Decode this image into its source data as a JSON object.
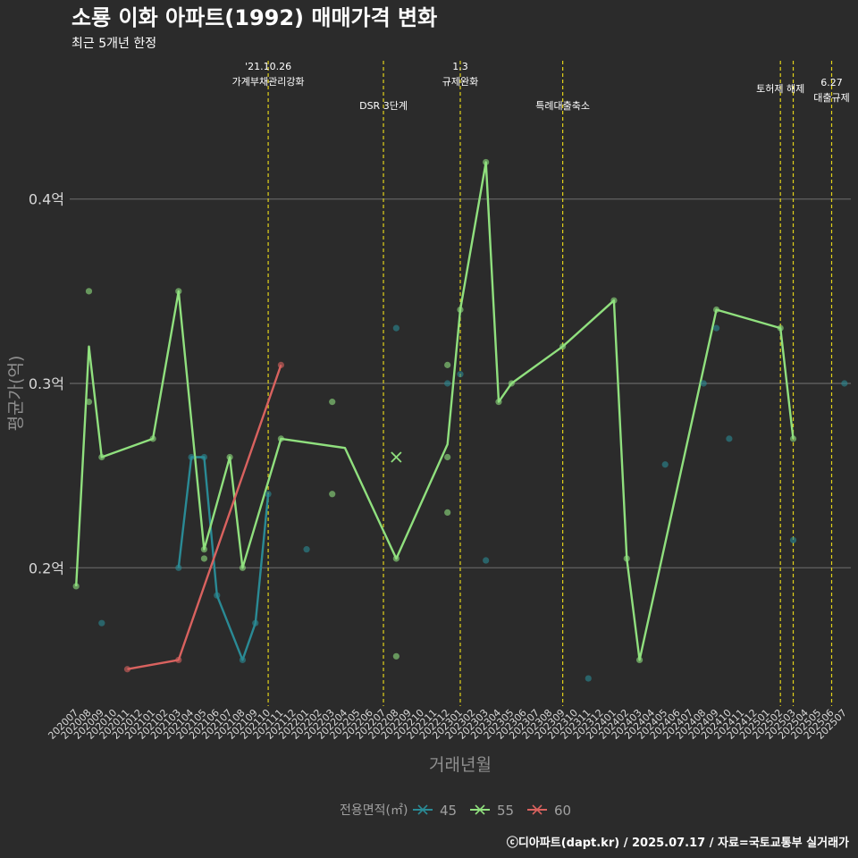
{
  "chart_data": {
    "type": "line",
    "title": "소룡 이화 아파트(1992) 매매가격 변화",
    "subtitle": "최근 5개년 한정",
    "xlabel": "거래년월",
    "ylabel": "평균가(억)",
    "caption": "ⓒ디아파트(dapt.kr) / 2025.07.17 / 자료=국토교통부 실거래가",
    "ylim": [
      0.125,
      0.475
    ],
    "y_ticks": [
      {
        "value": 0.2,
        "label": "0.2억"
      },
      {
        "value": 0.3,
        "label": "0.3억"
      },
      {
        "value": 0.4,
        "label": "0.4억"
      }
    ],
    "x_categories": [
      "202007",
      "202008",
      "202009",
      "202010",
      "202011",
      "202012",
      "202101",
      "202102",
      "202103",
      "202104",
      "202105",
      "202106",
      "202107",
      "202108",
      "202109",
      "202110",
      "202111",
      "202112",
      "202201",
      "202202",
      "202203",
      "202204",
      "202205",
      "202206",
      "202207",
      "202208",
      "202209",
      "202210",
      "202211",
      "202212",
      "202301",
      "202302",
      "202303",
      "202304",
      "202305",
      "202306",
      "202307",
      "202308",
      "202309",
      "202310",
      "202311",
      "202312",
      "202401",
      "202402",
      "202403",
      "202404",
      "202405",
      "202406",
      "202407",
      "202408",
      "202409",
      "202410",
      "202411",
      "202412",
      "202501",
      "202502",
      "202503",
      "202504",
      "202505",
      "202506",
      "202507"
    ],
    "legend": {
      "title": "전용면적(㎡)",
      "position": "bottom"
    },
    "series": [
      {
        "name": "45",
        "color": "#2a8a95",
        "line": [
          [
            "202103",
            0.2
          ],
          [
            "202104",
            0.26
          ],
          [
            "202105",
            0.26
          ],
          [
            "202106",
            0.185
          ],
          [
            "202108",
            0.15
          ],
          [
            "202109",
            0.17
          ],
          [
            "202110",
            0.24
          ]
        ],
        "points": [
          [
            "202009",
            0.17
          ],
          [
            "202103",
            0.2
          ],
          [
            "202104",
            0.26
          ],
          [
            "202105",
            0.26
          ],
          [
            "202106",
            0.185
          ],
          [
            "202108",
            0.15
          ],
          [
            "202109",
            0.17
          ],
          [
            "202110",
            0.24
          ],
          [
            "202201",
            0.21
          ],
          [
            "202208",
            0.33
          ],
          [
            "202212",
            0.3
          ],
          [
            "202301",
            0.305
          ],
          [
            "202303",
            0.204
          ],
          [
            "202311",
            0.14
          ],
          [
            "202405",
            0.256
          ],
          [
            "202408",
            0.3
          ],
          [
            "202409",
            0.33
          ],
          [
            "202410",
            0.27
          ],
          [
            "202503",
            0.215
          ],
          [
            "202507",
            0.3
          ]
        ]
      },
      {
        "name": "55",
        "color": "#90e07e",
        "line": [
          [
            "202007",
            0.19
          ],
          [
            "202008",
            0.32
          ],
          [
            "202009",
            0.26
          ],
          [
            "202101",
            0.27
          ],
          [
            "202103",
            0.35
          ],
          [
            "202105",
            0.21
          ],
          [
            "202107",
            0.26
          ],
          [
            "202108",
            0.2
          ],
          [
            "202111",
            0.27
          ],
          [
            "202204",
            0.265
          ],
          [
            "202208",
            0.205
          ],
          [
            "202212",
            0.267
          ],
          [
            "202301",
            0.34
          ],
          [
            "202303",
            0.42
          ],
          [
            "202304",
            0.29
          ],
          [
            "202305",
            0.3
          ],
          [
            "202309",
            0.32
          ],
          [
            "202401",
            0.345
          ],
          [
            "202402",
            0.205
          ],
          [
            "202403",
            0.15
          ],
          [
            "202409",
            0.34
          ],
          [
            "202502",
            0.33
          ],
          [
            "202503",
            0.27
          ]
        ],
        "points": [
          [
            "202007",
            0.19
          ],
          [
            "202008",
            0.35
          ],
          [
            "202008",
            0.29
          ],
          [
            "202009",
            0.26
          ],
          [
            "202101",
            0.27
          ],
          [
            "202103",
            0.35
          ],
          [
            "202105",
            0.205
          ],
          [
            "202105",
            0.21
          ],
          [
            "202107",
            0.26
          ],
          [
            "202108",
            0.2
          ],
          [
            "202111",
            0.27
          ],
          [
            "202203",
            0.29
          ],
          [
            "202203",
            0.24
          ],
          [
            "202208",
            0.205
          ],
          [
            "202208",
            0.152
          ],
          [
            "202212",
            0.31
          ],
          [
            "202212",
            0.26
          ],
          [
            "202212",
            0.23
          ],
          [
            "202301",
            0.34
          ],
          [
            "202303",
            0.42
          ],
          [
            "202304",
            0.29
          ],
          [
            "202305",
            0.3
          ],
          [
            "202309",
            0.32
          ],
          [
            "202401",
            0.345
          ],
          [
            "202402",
            0.205
          ],
          [
            "202403",
            0.15
          ],
          [
            "202409",
            0.34
          ],
          [
            "202502",
            0.33
          ],
          [
            "202503",
            0.27
          ]
        ],
        "cross": [
          [
            "202208",
            0.26
          ]
        ]
      },
      {
        "name": "60",
        "color": "#d9625f",
        "line": [
          [
            "202011",
            0.145
          ],
          [
            "202103",
            0.15
          ],
          [
            "202111",
            0.31
          ]
        ],
        "points": [
          [
            "202011",
            0.145
          ],
          [
            "202103",
            0.15
          ],
          [
            "202111",
            0.31
          ]
        ]
      }
    ],
    "annotations": [
      {
        "x": 15.0,
        "lines": [
          "'21.10.26",
          "가계부채관리강화"
        ],
        "tier": "high"
      },
      {
        "x": 24.0,
        "lines": [
          "DSR 3단계"
        ],
        "tier": "low"
      },
      {
        "x": 30.0,
        "lines": [
          "1.3",
          "규제완화"
        ],
        "tier": "high"
      },
      {
        "x": 38.0,
        "lines": [
          "특례대출축소"
        ],
        "tier": "low"
      },
      {
        "x": 55.0,
        "lines": [
          "토허제 해제"
        ],
        "tier": "mid"
      },
      {
        "x": 56.0,
        "lines": [],
        "tier": "none"
      },
      {
        "x": 59.0,
        "lines": [
          "6.27",
          "대출규제"
        ],
        "tier": "lower"
      }
    ]
  }
}
